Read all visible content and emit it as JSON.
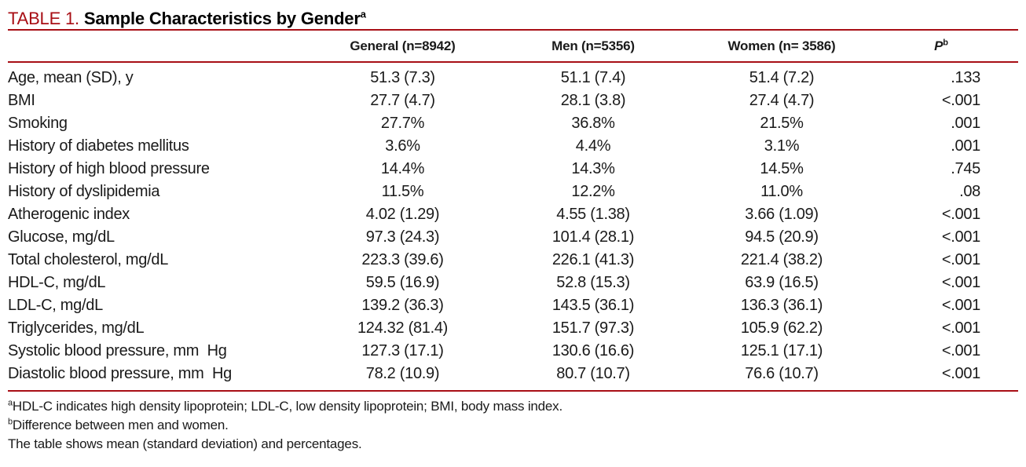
{
  "colors": {
    "accent": "#a80e15"
  },
  "title": {
    "label": "TABLE 1. ",
    "text": "Sample Characteristics by Gender",
    "sup": "a"
  },
  "table": {
    "header": {
      "label": "",
      "general": "General (n=8942)",
      "men": "Men (n=5356)",
      "women": "Women (n= 3586)",
      "p": "P",
      "p_sup": "b"
    },
    "rows": [
      {
        "label": "Age, mean (SD), y",
        "general": "51.3 (7.3)",
        "men": "51.1 (7.4)",
        "women": "51.4 (7.2)",
        "p": ".133"
      },
      {
        "label": "BMI",
        "general": "27.7 (4.7)",
        "men": "28.1 (3.8)",
        "women": "27.4 (4.7)",
        "p": "<.001"
      },
      {
        "label": "Smoking",
        "general": "27.7%",
        "men": "36.8%",
        "women": "21.5%",
        "p": ".001"
      },
      {
        "label": "History of diabetes mellitus",
        "general": "3.6%",
        "men": "4.4%",
        "women": "3.1%",
        "p": ".001"
      },
      {
        "label": "History of high blood pressure",
        "general": "14.4%",
        "men": "14.3%",
        "women": "14.5%",
        "p": ".745"
      },
      {
        "label": "History of dyslipidemia",
        "general": "11.5%",
        "men": "12.2%",
        "women": "11.0%",
        "p": ".08"
      },
      {
        "label": "Atherogenic index",
        "general": "4.02 (1.29)",
        "men": "4.55 (1.38)",
        "women": "3.66 (1.09)",
        "p": "<.001"
      },
      {
        "label": "Glucose, mg/dL",
        "general": "97.3 (24.3)",
        "men": "101.4 (28.1)",
        "women": "94.5 (20.9)",
        "p": "<.001"
      },
      {
        "label": "Total cholesterol, mg/dL",
        "general": "223.3 (39.6)",
        "men": "226.1 (41.3)",
        "women": "221.4 (38.2)",
        "p": "<.001"
      },
      {
        "label": "HDL-C, mg/dL",
        "general": "59.5 (16.9)",
        "men": "52.8 (15.3)",
        "women": "63.9 (16.5)",
        "p": "<.001"
      },
      {
        "label": "LDL-C, mg/dL",
        "general": "139.2 (36.3)",
        "men": "143.5 (36.1)",
        "women": "136.3 (36.1)",
        "p": "<.001"
      },
      {
        "label": "Triglycerides, mg/dL",
        "general": "124.32 (81.4)",
        "men": "151.7 (97.3)",
        "women": "105.9 (62.2)",
        "p": "<.001"
      },
      {
        "label": "Systolic blood pressure, mm  Hg",
        "general": "127.3 (17.1)",
        "men": "130.6 (16.6)",
        "women": "125.1 (17.1)",
        "p": "<.001"
      },
      {
        "label": "Diastolic blood pressure, mm  Hg",
        "general": "78.2 (10.9)",
        "men": "80.7 (10.7)",
        "women": "76.6 (10.7)",
        "p": "<.001"
      }
    ]
  },
  "footnotes": [
    {
      "sup": "a",
      "text": "HDL-C indicates high density lipoprotein; LDL-C, low density lipoprotein; BMI, body mass index."
    },
    {
      "sup": "b",
      "text": "Difference between men and women."
    },
    {
      "sup": "",
      "text": "The table shows mean (standard deviation) and percentages."
    }
  ]
}
